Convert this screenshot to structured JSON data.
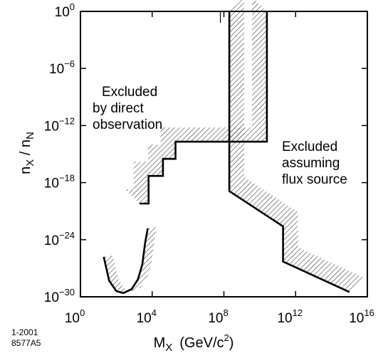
{
  "chart_data": {
    "type": "line",
    "xlabel": "M",
    "xlabel_sub": "X",
    "xlabel_units_pre": "(GeV/c",
    "xlabel_units_exp": "2",
    "xlabel_units_post": ")",
    "ylabel_num": "n",
    "ylabel_num_sub": "X",
    "ylabel_sep": " / ",
    "ylabel_den": "n",
    "ylabel_den_sub": "N",
    "x_log": true,
    "y_log": true,
    "xlim_log10": [
      0,
      16
    ],
    "ylim_log10": [
      -30,
      0
    ],
    "x_ticks": [
      {
        "base": "10",
        "exp": "0",
        "log": 0
      },
      {
        "base": "10",
        "exp": "4",
        "log": 4
      },
      {
        "base": "10",
        "exp": "8",
        "log": 8
      },
      {
        "base": "10",
        "exp": "12",
        "log": 12
      },
      {
        "base": "10",
        "exp": "16",
        "log": 16
      }
    ],
    "y_ticks": [
      {
        "base": "10",
        "exp": "0",
        "log": 0
      },
      {
        "base": "10",
        "exp": "−6",
        "log": -6
      },
      {
        "base": "10",
        "exp": "−12",
        "log": -12
      },
      {
        "base": "10",
        "exp": "−18",
        "log": -18
      },
      {
        "base": "10",
        "exp": "−24",
        "log": -24
      },
      {
        "base": "10",
        "exp": "−30",
        "log": -30
      }
    ],
    "grid": false,
    "series": [
      {
        "id": "direct",
        "x_log10": [
          3.3,
          3.8,
          3.8,
          4.6,
          4.6,
          5.3,
          5.3,
          10.4,
          10.4
        ],
        "y_log10": [
          -20.2,
          -20.2,
          -17.3,
          -17.3,
          -15.5,
          -15.5,
          -13.7,
          -13.7,
          0
        ]
      },
      {
        "id": "direct_lowmass",
        "x_log10": [
          1.3,
          1.6,
          2.0,
          2.4,
          2.85,
          3.2,
          3.45,
          3.6,
          3.75
        ],
        "y_log10": [
          -25.8,
          -28.3,
          -29.4,
          -29.6,
          -29.2,
          -28.2,
          -26.6,
          -24.4,
          -22.8
        ]
      },
      {
        "id": "flux",
        "x_log10": [
          8.3,
          8.3,
          11.3,
          11.3,
          15.0
        ],
        "y_log10": [
          0,
          -18.9,
          -22.6,
          -26.3,
          -29.5
        ]
      }
    ],
    "annotations": [
      {
        "lines": [
          "Excluded",
          "by direct",
          "observation"
        ]
      },
      {
        "lines": [
          "Excluded",
          "assuming",
          "flux source"
        ]
      }
    ]
  },
  "figure_id": {
    "line1": "1-2001",
    "line2": "8577A5"
  },
  "colors": {
    "line": "#000000",
    "hatch": "#000000",
    "background": "#ffffff"
  }
}
